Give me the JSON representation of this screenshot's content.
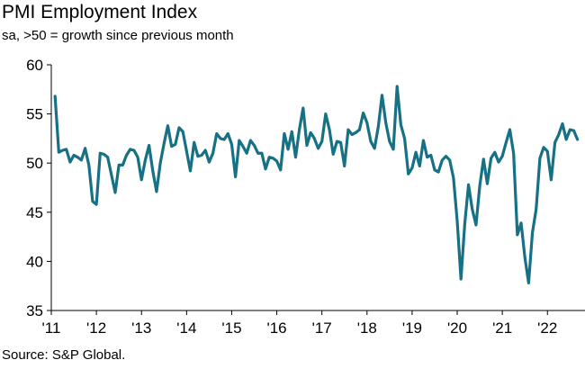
{
  "chart_data": {
    "type": "line",
    "title": "PMI Employment Index",
    "subtitle": "sa, >50 = growth since previous month",
    "source": "Source: S&P Global.",
    "xlabel": "",
    "ylabel": "",
    "ylim": [
      35,
      60
    ],
    "yticks": [
      35,
      40,
      45,
      50,
      55,
      60
    ],
    "ytick_labels": [
      "35",
      "40",
      "45",
      "50",
      "55",
      "60"
    ],
    "xlim": [
      2011.0,
      2022.833
    ],
    "xticks": [
      2011,
      2012,
      2013,
      2014,
      2015,
      2016,
      2017,
      2018,
      2019,
      2020,
      2021,
      2022
    ],
    "xtick_labels": [
      "'11",
      "'12",
      "'13",
      "'14",
      "'15",
      "'16",
      "'17",
      "'18",
      "'19",
      "'20",
      "'21",
      "'22"
    ],
    "grid": false,
    "series": [
      {
        "name": "PMI Employment Index",
        "color": "#167184",
        "start": "2011-02",
        "values": [
          56.8,
          51.1,
          51.3,
          51.4,
          50.1,
          50.8,
          50.6,
          50.3,
          51.5,
          49.8,
          46.1,
          45.8,
          51.0,
          50.9,
          50.6,
          48.8,
          47.0,
          49.8,
          49.8,
          50.8,
          51.4,
          51.3,
          50.6,
          48.3,
          50.3,
          51.8,
          49.2,
          47.1,
          50.0,
          52.0,
          53.8,
          51.7,
          51.9,
          53.6,
          53.2,
          51.2,
          49.2,
          52.1,
          50.7,
          50.8,
          51.3,
          50.1,
          51.0,
          53.0,
          52.5,
          52.4,
          53.0,
          51.9,
          48.6,
          52.3,
          51.7,
          51.0,
          52.3,
          51.8,
          51.0,
          51.0,
          49.4,
          50.6,
          50.5,
          50.2,
          49.3,
          53.0,
          51.4,
          53.2,
          50.6,
          53.4,
          55.6,
          51.8,
          53.1,
          52.5,
          51.5,
          52.2,
          55.0,
          53.4,
          50.9,
          52.2,
          52.1,
          49.7,
          53.4,
          52.9,
          53.1,
          53.4,
          55.1,
          54.1,
          52.2,
          51.5,
          53.7,
          56.9,
          54.1,
          52.2,
          51.4,
          57.8,
          53.9,
          52.5,
          48.9,
          49.5,
          51.1,
          49.7,
          52.3,
          50.6,
          50.8,
          49.3,
          49.1,
          50.3,
          50.7,
          50.3,
          48.5,
          44.1,
          38.2,
          43.8,
          47.8,
          45.3,
          43.7,
          47.7,
          50.4,
          47.9,
          50.5,
          51.1,
          50.1,
          50.7,
          52.1,
          53.4,
          51.0,
          42.7,
          43.9,
          40.4,
          37.8,
          42.9,
          45.3,
          50.5,
          51.6,
          51.2,
          48.3,
          52.1,
          52.9,
          54.0,
          52.4,
          53.4,
          53.3,
          52.4
        ]
      }
    ]
  }
}
